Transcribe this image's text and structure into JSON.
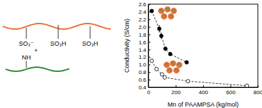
{
  "chart_data": {
    "type": "line",
    "xlabel": "Mn of PAAMPSA (kg/mol)",
    "ylabel": "Conductivity (S/cm)",
    "xlim": [
      0,
      800
    ],
    "xticks": [
      0,
      200,
      400,
      600,
      800
    ],
    "ylim": [
      0.4,
      2.6
    ],
    "yticks": [
      0.4,
      0.6,
      0.8,
      {
        "value": 1.0,
        "label": "1.0"
      },
      1.2,
      1.4,
      1.6,
      1.8,
      {
        "value": 2.0,
        "label": "2.0"
      },
      2.2,
      2.4,
      2.6
    ],
    "series": [
      {
        "color": "#000000",
        "marker": "circle",
        "line_style": "dashed",
        "x": [
          25,
          80,
          95,
          125,
          160,
          280
        ],
        "values": [
          2.42,
          1.95,
          1.76,
          1.42,
          1.28,
          1.06
        ],
        "errors": [
          0.03,
          0.1,
          0.09,
          0.06,
          0.05,
          0.03
        ]
      },
      {
        "color": "#000000",
        "marker": "open-circle",
        "line_style": "dashed",
        "x": [
          25,
          60,
          100,
          120,
          290,
          720
        ],
        "values": [
          1.1,
          0.88,
          0.74,
          0.66,
          0.56,
          0.44
        ],
        "errors": [
          0.03,
          0.04,
          0.03,
          0.03,
          0.02,
          0.02
        ]
      }
    ]
  },
  "diagram": {
    "labels": [
      "SO₃⁻",
      "+",
      "NH",
      "SO₃H",
      "SO₃H"
    ]
  }
}
